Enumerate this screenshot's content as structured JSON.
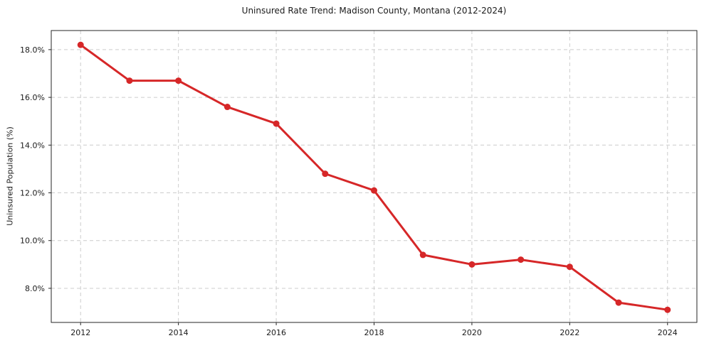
{
  "chart_data": {
    "type": "line",
    "title": "Uninsured Rate Trend: Madison County, Montana (2012-2024)",
    "xlabel": "",
    "ylabel": "Uninsured Population (%)",
    "x": [
      2012,
      2013,
      2014,
      2015,
      2016,
      2017,
      2018,
      2019,
      2020,
      2021,
      2022,
      2023,
      2024
    ],
    "values": [
      18.2,
      16.7,
      16.7,
      15.6,
      14.9,
      12.8,
      12.1,
      9.4,
      9.0,
      9.2,
      8.9,
      7.4,
      7.1
    ],
    "xticks": [
      2012,
      2014,
      2016,
      2018,
      2020,
      2022,
      2024
    ],
    "yticks": [
      8.0,
      10.0,
      12.0,
      14.0,
      16.0,
      18.0
    ],
    "ytick_suffix": "%",
    "xlim": [
      2011.4,
      2024.6
    ],
    "ylim": [
      6.57,
      18.8
    ],
    "grid": true,
    "legend_position": "none",
    "colors": {
      "line": "#d62728",
      "marker": "#d62728",
      "grid": "#cccccc",
      "frame": "#262626",
      "tick_text": "#1a1a1a",
      "background": "#ffffff"
    }
  }
}
